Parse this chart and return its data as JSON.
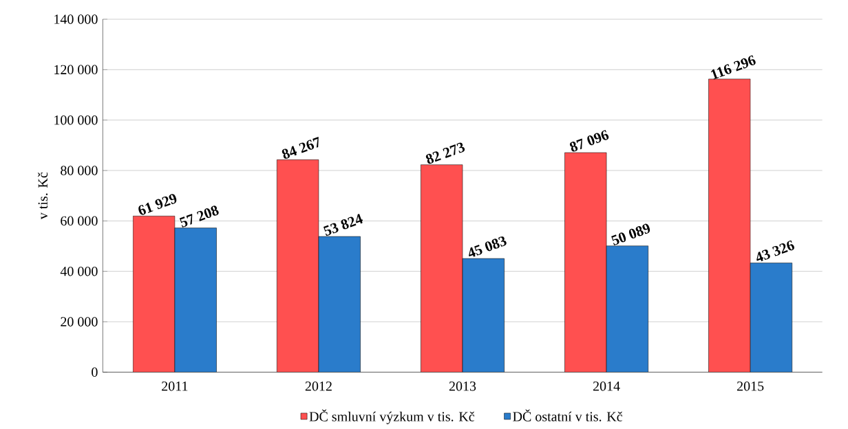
{
  "chart_data": {
    "type": "bar",
    "ylabel": "v tis. Kč",
    "categories": [
      "2011",
      "2012",
      "2013",
      "2014",
      "2015"
    ],
    "series": [
      {
        "name": "DČ smluvní výzkum v tis. Kč",
        "color": "#ff5050",
        "values": [
          61929,
          84267,
          82273,
          87096,
          116296
        ],
        "value_labels": [
          "61 929",
          "84 267",
          "82 273",
          "87 096",
          "116 296"
        ]
      },
      {
        "name": "DČ ostatní v tis. Kč",
        "color": "#2a7ccb",
        "values": [
          57208,
          53824,
          45083,
          50089,
          43326
        ],
        "value_labels": [
          "57 208",
          "53 824",
          "45 083",
          "50 089",
          "43 326"
        ]
      }
    ],
    "ylim": [
      0,
      140000
    ],
    "yticks": [
      {
        "value": 0,
        "label": "0"
      },
      {
        "value": 20000,
        "label": "20 000"
      },
      {
        "value": 40000,
        "label": "40 000"
      },
      {
        "value": 60000,
        "label": "60 000"
      },
      {
        "value": 80000,
        "label": "80 000"
      },
      {
        "value": 100000,
        "label": "100 000"
      },
      {
        "value": 120000,
        "label": "120 000"
      },
      {
        "value": 140000,
        "label": "140 000"
      }
    ],
    "grid": "y",
    "legend": "bottom"
  }
}
